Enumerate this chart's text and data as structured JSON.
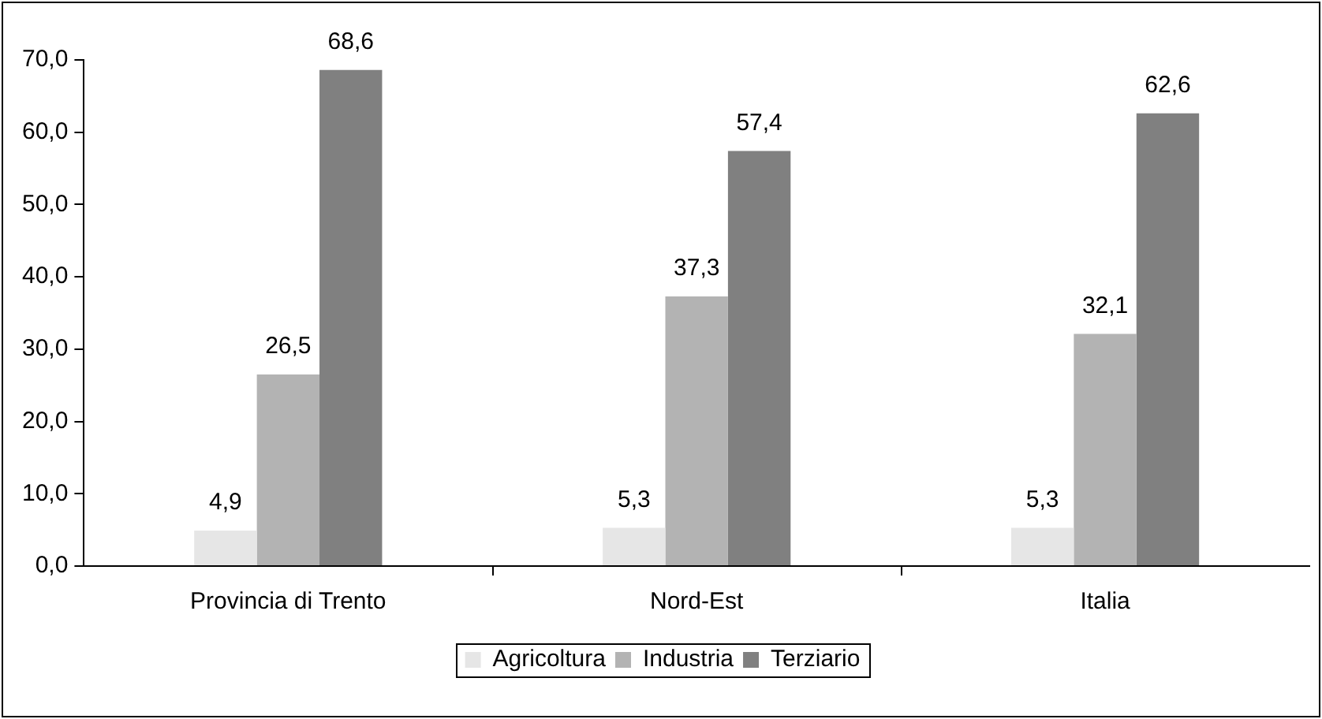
{
  "chart_data": {
    "type": "bar",
    "categories": [
      "Provincia di Trento",
      "Nord-Est",
      "Italia"
    ],
    "series": [
      {
        "name": "Agricoltura",
        "color": "#e6e6e6",
        "values": [
          4.9,
          5.3,
          5.3
        ],
        "value_labels": [
          "4,9",
          "5,3",
          "5,3"
        ]
      },
      {
        "name": "Industria",
        "color": "#b3b3b3",
        "values": [
          26.5,
          37.3,
          32.1
        ],
        "value_labels": [
          "26,5",
          "37,3",
          "32,1"
        ]
      },
      {
        "name": "Terziario",
        "color": "#808080",
        "values": [
          68.6,
          57.4,
          62.6
        ],
        "value_labels": [
          "68,6",
          "57,4",
          "62,6"
        ]
      }
    ],
    "ylim": [
      0,
      70
    ],
    "yticks": [
      {
        "value": 0,
        "label": "0,0"
      },
      {
        "value": 10,
        "label": "10,0"
      },
      {
        "value": 20,
        "label": "20,0"
      },
      {
        "value": 30,
        "label": "30,0"
      },
      {
        "value": 40,
        "label": "40,0"
      },
      {
        "value": 50,
        "label": "50,0"
      },
      {
        "value": 60,
        "label": "60,0"
      },
      {
        "value": 70,
        "label": "70,0"
      }
    ],
    "grid": false,
    "legend": "bottom"
  }
}
